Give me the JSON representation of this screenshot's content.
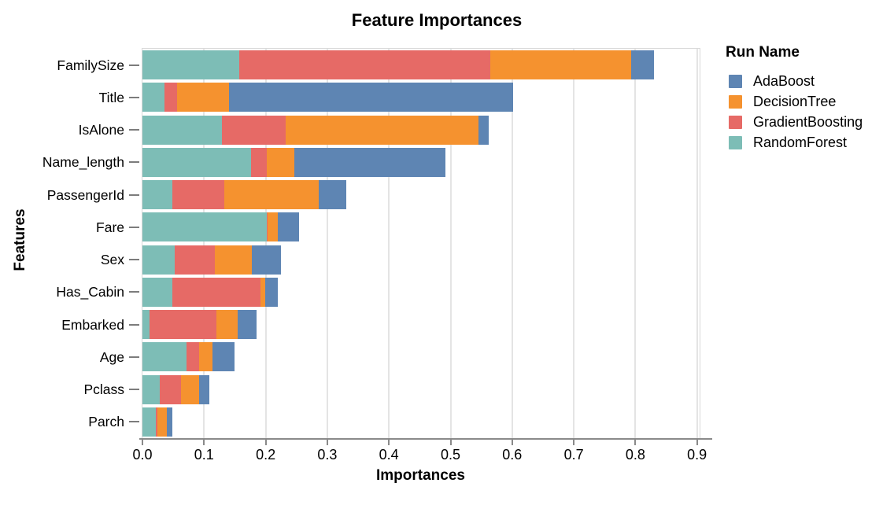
{
  "chart_data": {
    "type": "bar",
    "orientation": "horizontal",
    "stacked": true,
    "title": "Feature Importances",
    "xlabel": "Importances",
    "ylabel": "Features",
    "legend_title": "Run Name",
    "legend_position": "right",
    "grid": "vertical",
    "xlim": [
      0,
      0.9
    ],
    "x_ticks": [
      "0.0",
      "0.1",
      "0.2",
      "0.3",
      "0.4",
      "0.5",
      "0.6",
      "0.7",
      "0.8",
      "0.9"
    ],
    "categories": [
      "FamilySize",
      "Title",
      "IsAlone",
      "Name_length",
      "PassengerId",
      "Fare",
      "Sex",
      "Has_Cabin",
      "Embarked",
      "Age",
      "Pclass",
      "Parch"
    ],
    "stack_order": [
      "RandomForest",
      "GradientBoosting",
      "DecisionTree",
      "AdaBoost"
    ],
    "series": [
      {
        "name": "AdaBoost",
        "color": "#5e85b3",
        "values": [
          0.037,
          0.462,
          0.017,
          0.246,
          0.045,
          0.034,
          0.047,
          0.021,
          0.031,
          0.036,
          0.017,
          0.009
        ]
      },
      {
        "name": "DecisionTree",
        "color": "#f5922f",
        "values": [
          0.229,
          0.084,
          0.312,
          0.044,
          0.153,
          0.017,
          0.06,
          0.008,
          0.034,
          0.022,
          0.029,
          0.016
        ]
      },
      {
        "name": "GradientBoosting",
        "color": "#e66a66",
        "values": [
          0.407,
          0.02,
          0.104,
          0.026,
          0.084,
          0.001,
          0.065,
          0.142,
          0.109,
          0.02,
          0.035,
          0.002
        ]
      },
      {
        "name": "RandomForest",
        "color": "#7dbdb6",
        "values": [
          0.157,
          0.036,
          0.129,
          0.176,
          0.049,
          0.202,
          0.053,
          0.049,
          0.011,
          0.072,
          0.028,
          0.022
        ]
      }
    ],
    "colors": {
      "gridline": "#e4e4e4",
      "plot_border": "#d9d9d9",
      "axis_line": "#8a8a8a",
      "text": "#000000"
    }
  }
}
